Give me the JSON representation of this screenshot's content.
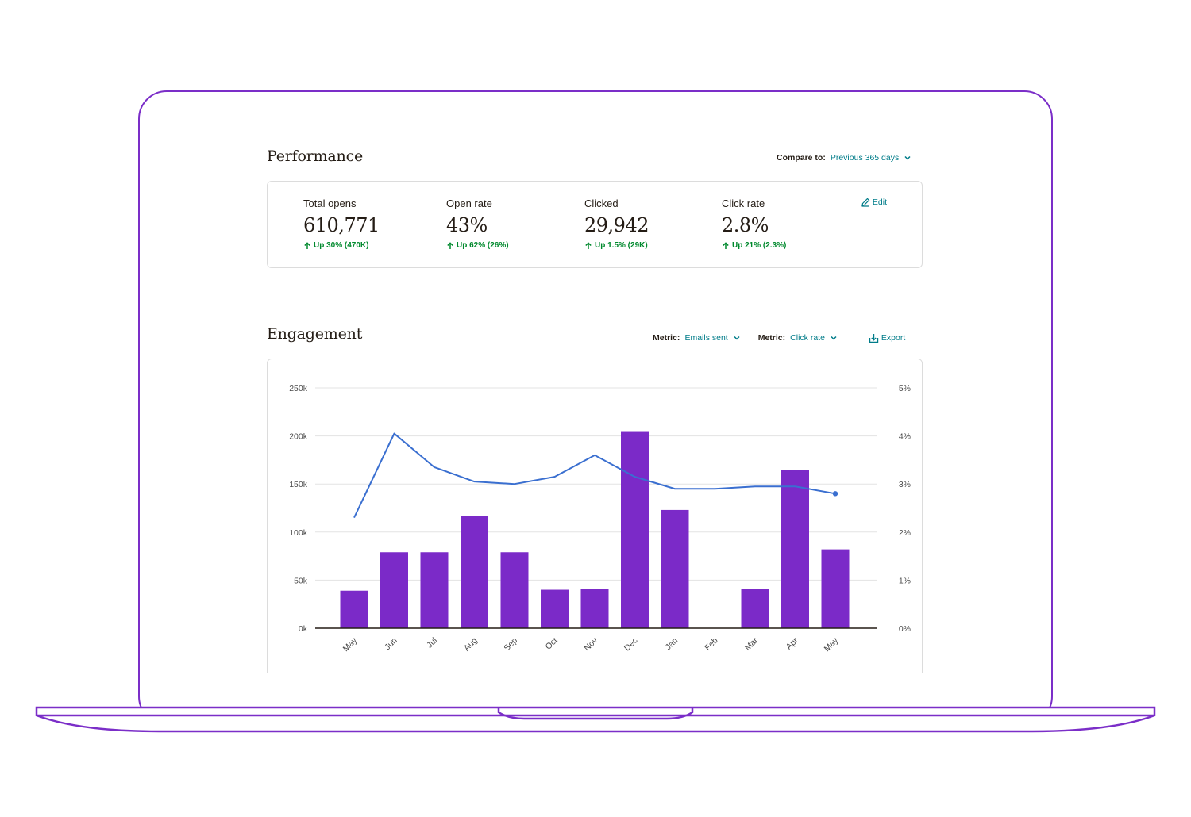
{
  "performance": {
    "title": "Performance",
    "compare_label": "Compare to:",
    "compare_value": "Previous 365 days",
    "edit_label": "Edit",
    "stats": [
      {
        "label": "Total opens",
        "value": "610,771",
        "delta": "Up 30% (470K)"
      },
      {
        "label": "Open rate",
        "value": "43%",
        "delta": "Up 62% (26%)"
      },
      {
        "label": "Clicked",
        "value": "29,942",
        "delta": "Up 1.5% (29K)"
      },
      {
        "label": "Click rate",
        "value": "2.8%",
        "delta": "Up 21% (2.3%)"
      }
    ]
  },
  "engagement": {
    "title": "Engagement",
    "metric1_label": "Metric:",
    "metric1_value": "Emails sent",
    "metric2_label": "Metric:",
    "metric2_value": "Click rate",
    "export_label": "Export"
  },
  "colors": {
    "bar": "#7b2ac8",
    "line": "#3a6fd0",
    "frame": "#7b2ec8",
    "accent": "#007c89",
    "positive": "#00892d"
  },
  "chart_data": {
    "type": "bar",
    "categories": [
      "May",
      "Jun",
      "Jul",
      "Aug",
      "Sep",
      "Oct",
      "Nov",
      "Dec",
      "Jan",
      "Feb",
      "Mar",
      "Apr",
      "May"
    ],
    "series": [
      {
        "values": [
          39000,
          79000,
          79000,
          117000,
          79000,
          40000,
          41000,
          205000,
          123000,
          0,
          41000,
          165000,
          82000
        ],
        "axis": "left",
        "type": "bar"
      },
      {
        "values": [
          2.3,
          4.05,
          3.35,
          3.05,
          3.0,
          3.15,
          3.6,
          3.15,
          2.9,
          2.9,
          2.95,
          2.95,
          2.8
        ],
        "axis": "right",
        "type": "line"
      }
    ],
    "left_ticks": [
      "0k",
      "50k",
      "100k",
      "150k",
      "200k",
      "250k"
    ],
    "right_ticks": [
      "0%",
      "1%",
      "2%",
      "3%",
      "4%",
      "5%"
    ],
    "ylim_left": [
      0,
      250000
    ],
    "ylim_right": [
      0,
      5
    ],
    "grid": true
  }
}
